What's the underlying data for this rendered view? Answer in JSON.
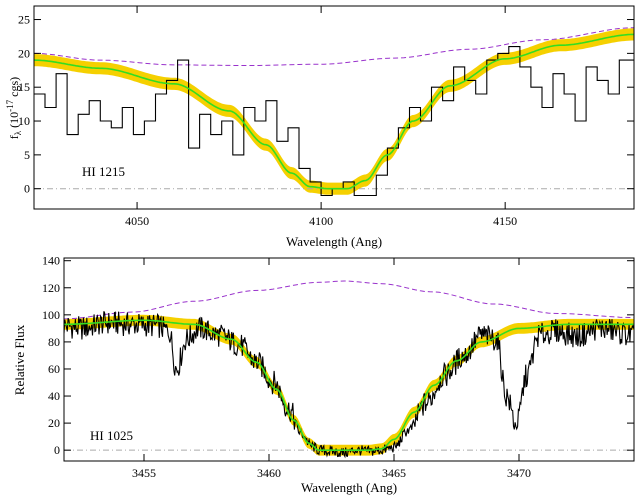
{
  "chart_data": [
    {
      "type": "line",
      "annotation": "HI 1215",
      "xlabel": "Wavelength (Ang)",
      "ylabel": "f_λ (10^-17 cgs)",
      "ylabel_main": "f",
      "ylabel_sub": "λ",
      "ylabel_rest": " (10",
      "ylabel_exp": "-17",
      "ylabel_tail": " cgs)",
      "xlim": [
        4022,
        4185
      ],
      "ylim": [
        -3,
        27
      ],
      "xticks": [
        4050,
        4100,
        4150
      ],
      "yticks": [
        0,
        5,
        10,
        15,
        20,
        25
      ],
      "grid": false,
      "series": [
        {
          "role": "data",
          "style": "histogram",
          "color": "#000000",
          "x": [
            4022,
            4025,
            4028,
            4031,
            4034,
            4037,
            4040,
            4043,
            4046,
            4049,
            4052,
            4055,
            4058,
            4061,
            4064,
            4067,
            4070,
            4073,
            4076,
            4079,
            4082,
            4085,
            4088,
            4091,
            4094,
            4097,
            4100,
            4103,
            4106,
            4109,
            4112,
            4115,
            4118,
            4121,
            4124,
            4127,
            4130,
            4133,
            4136,
            4139,
            4142,
            4145,
            4148,
            4151,
            4154,
            4157,
            4160,
            4163,
            4166,
            4169,
            4172,
            4175,
            4178,
            4181
          ],
          "y": [
            14,
            12,
            17,
            8,
            11,
            13,
            10,
            9,
            12,
            8,
            10,
            14,
            16,
            19,
            6,
            11,
            8,
            10,
            5,
            12,
            10,
            13,
            7,
            9,
            3,
            1,
            -1,
            0,
            1,
            -1,
            -1,
            2,
            6,
            9,
            12,
            10,
            15,
            13,
            18,
            16,
            14,
            19,
            20,
            21,
            18,
            15,
            12,
            17,
            14,
            10,
            18,
            16,
            14,
            19
          ]
        },
        {
          "role": "continuum",
          "style": "dashed",
          "color": "#9932CC",
          "x": [
            4022,
            4040,
            4060,
            4080,
            4100,
            4120,
            4140,
            4160,
            4185
          ],
          "y": [
            20,
            19,
            18.3,
            18.2,
            18.4,
            19.3,
            20.6,
            22.0,
            23.8
          ]
        },
        {
          "role": "error-band",
          "style": "band",
          "color": "#F5D000",
          "halfwidth": 0.9
        },
        {
          "role": "model",
          "style": "solid",
          "color": "#33DD22",
          "x": [
            4022,
            4040,
            4060,
            4075,
            4085,
            4092,
            4097,
            4102,
            4107,
            4112,
            4118,
            4125,
            4135,
            4150,
            4165,
            4185
          ],
          "y": [
            19,
            17.8,
            15.5,
            11.5,
            6.5,
            2.3,
            0.3,
            0,
            0,
            1.2,
            5,
            10,
            15.2,
            19.2,
            21.2,
            22.8
          ]
        },
        {
          "role": "zero",
          "style": "dash-dot",
          "color": "#AAAAAA",
          "x": [
            4022,
            4185
          ],
          "y": [
            0,
            0
          ]
        }
      ]
    },
    {
      "type": "line",
      "annotation": "HI 1025",
      "xlabel": "Wavelength (Ang)",
      "ylabel": "Relative Flux",
      "xlim": [
        3451.8,
        3474.6
      ],
      "ylim": [
        -8,
        142
      ],
      "xticks": [
        3455,
        3460,
        3465,
        3470
      ],
      "yticks": [
        0,
        20,
        40,
        60,
        80,
        100,
        120,
        140
      ],
      "grid": false,
      "series": [
        {
          "role": "data",
          "style": "jagged",
          "color": "#000000",
          "x": [
            3451.8,
            3452.5,
            3453.5,
            3454.5,
            3455.5,
            3456.0,
            3456.3,
            3456.7,
            3457.2,
            3458.0,
            3458.8,
            3459.5,
            3460.2,
            3460.8,
            3461.3,
            3461.7,
            3462.0,
            3462.5,
            3463.0,
            3463.5,
            3464.0,
            3464.5,
            3465.0,
            3465.6,
            3466.3,
            3467.0,
            3467.8,
            3468.5,
            3469.1,
            3469.5,
            3469.9,
            3470.3,
            3470.8,
            3471.5,
            3472.3,
            3473.2,
            3474.6
          ],
          "y": [
            92,
            90,
            94,
            93,
            92,
            88,
            60,
            82,
            90,
            85,
            78,
            65,
            50,
            30,
            12,
            3,
            0,
            -1,
            -2,
            0,
            -1,
            0,
            2,
            15,
            35,
            55,
            70,
            85,
            82,
            40,
            18,
            55,
            85,
            88,
            84,
            90,
            85
          ]
        },
        {
          "role": "continuum",
          "style": "dashed",
          "color": "#9932CC",
          "x": [
            3451.8,
            3454.5,
            3457.0,
            3459.5,
            3462.0,
            3463.0,
            3464.5,
            3466.5,
            3469.0,
            3471.5,
            3474.6
          ],
          "y": [
            97,
            102,
            110,
            118,
            124,
            125,
            123,
            117,
            108,
            101,
            98
          ]
        },
        {
          "role": "error-band",
          "style": "band",
          "color": "#F5D000",
          "halfwidth": 4
        },
        {
          "role": "model",
          "style": "solid",
          "color": "#33DD22",
          "x": [
            3451.8,
            3455.0,
            3457.0,
            3458.5,
            3459.5,
            3460.3,
            3461.0,
            3461.6,
            3462.0,
            3463.0,
            3464.0,
            3464.5,
            3465.0,
            3465.8,
            3466.6,
            3467.5,
            3468.5,
            3470.0,
            3472.0,
            3474.6
          ],
          "y": [
            93,
            96,
            93,
            82,
            65,
            45,
            22,
            5,
            0,
            0,
            0,
            1,
            8,
            28,
            48,
            66,
            80,
            90,
            93,
            93
          ]
        },
        {
          "role": "zero",
          "style": "dash-dot",
          "color": "#AAAAAA",
          "x": [
            3451.8,
            3474.6
          ],
          "y": [
            0,
            0
          ]
        }
      ]
    }
  ]
}
